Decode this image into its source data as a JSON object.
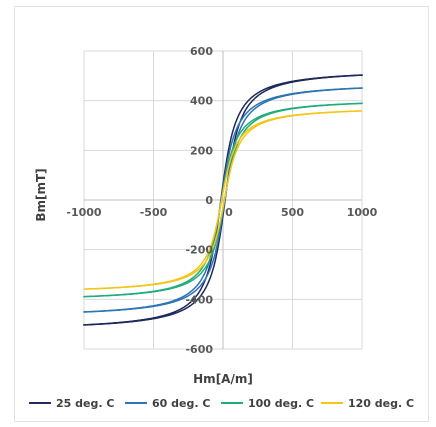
{
  "chart_data": {
    "type": "line",
    "title": "",
    "xlabel": "Hm[A/m]",
    "ylabel": "Bm[mT]",
    "xlim": [
      -1000,
      1000
    ],
    "ylim": [
      -600,
      600
    ],
    "x_ticks": [
      "-1000",
      "-500",
      "0",
      "500",
      "1000"
    ],
    "y_ticks": [
      "-600",
      "-400",
      "-200",
      "0",
      "200",
      "400",
      "600"
    ],
    "grid": true,
    "legend_position": "bottom",
    "series": [
      {
        "name": "25 deg. C",
        "color": "#1f2a5c",
        "saturation": 530,
        "coercivity": 15
      },
      {
        "name": "60 deg. C",
        "color": "#2e75b6",
        "saturation": 475,
        "coercivity": 13
      },
      {
        "name": "100 deg. C",
        "color": "#1fad7a",
        "saturation": 410,
        "coercivity": 11
      },
      {
        "name": "120 deg. C",
        "color": "#f5c518",
        "saturation": 378,
        "coercivity": 10
      }
    ]
  }
}
